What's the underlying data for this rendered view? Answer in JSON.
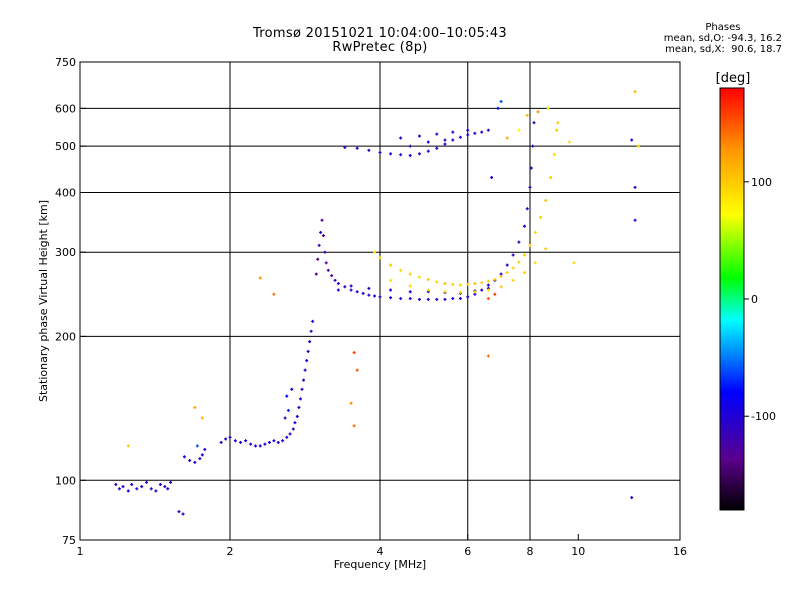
{
  "header": {
    "title": "Tromsø 20151021 10:04:00–10:05:43",
    "subtitle": "RwPretec (8p)"
  },
  "phase_info": {
    "label": "Phases",
    "o_line": "mean, sd,O: -94.3, 16.2",
    "x_line": "mean, sd,X:  90.6, 18.7"
  },
  "chart_data": {
    "type": "scatter",
    "title": "Tromsø 20151021 10:04:00–10:05:43",
    "subtitle": "RwPretec (8p)",
    "xlabel": "Frequency [MHz]",
    "ylabel": "Stationary phase Virtual Height [km]",
    "x_scale": "log",
    "y_scale": "log",
    "xlim": [
      1,
      16
    ],
    "ylim": [
      75,
      750
    ],
    "x_ticks": [
      1,
      2,
      4,
      6,
      8,
      10,
      16
    ],
    "y_ticks": [
      75,
      100,
      200,
      300,
      400,
      500,
      600,
      750
    ],
    "x_grid": [
      2,
      4,
      6,
      8
    ],
    "y_grid": [
      100,
      200,
      300,
      400,
      500,
      600
    ],
    "colorbar": {
      "label": "[deg]",
      "range": [
        -180,
        180
      ],
      "ticks": [
        100,
        0,
        -100
      ],
      "colors": [
        "#000000",
        "#5a008c",
        "#0000ff",
        "#00ffff",
        "#00ff00",
        "#ffff00",
        "#ff9900",
        "#ff0000"
      ]
    },
    "series": [
      {
        "mode": "O",
        "points": [
          [
            1.18,
            98,
            -110
          ],
          [
            1.2,
            96,
            -105
          ],
          [
            1.22,
            97,
            -112
          ],
          [
            1.25,
            95,
            -100
          ],
          [
            1.27,
            98,
            -95
          ],
          [
            1.3,
            96,
            -108
          ],
          [
            1.33,
            97,
            -102
          ],
          [
            1.36,
            99,
            -98
          ],
          [
            1.39,
            96,
            -110
          ],
          [
            1.42,
            95,
            -104
          ],
          [
            1.45,
            98,
            -100
          ],
          [
            1.48,
            97,
            -106
          ],
          [
            1.5,
            96,
            -100
          ],
          [
            1.52,
            99,
            -110
          ],
          [
            1.58,
            86,
            -105
          ],
          [
            1.61,
            85,
            -100
          ],
          [
            1.62,
            112,
            -95
          ],
          [
            1.66,
            110,
            -105
          ],
          [
            1.7,
            109,
            -100
          ],
          [
            1.74,
            111,
            -110
          ],
          [
            1.76,
            113,
            -95
          ],
          [
            1.78,
            116,
            -105
          ],
          [
            1.72,
            118,
            -60
          ],
          [
            1.92,
            120,
            -100
          ],
          [
            1.96,
            122,
            -105
          ],
          [
            2.0,
            123,
            -110
          ],
          [
            2.05,
            121,
            -100
          ],
          [
            2.1,
            120,
            -108
          ],
          [
            2.15,
            121,
            -102
          ],
          [
            2.2,
            119,
            -110
          ],
          [
            2.25,
            118,
            -100
          ],
          [
            2.3,
            118,
            -104
          ],
          [
            2.35,
            119,
            -100
          ],
          [
            2.4,
            120,
            -108
          ],
          [
            2.45,
            121,
            -100
          ],
          [
            2.5,
            120,
            -110
          ],
          [
            2.55,
            121,
            -98
          ],
          [
            2.6,
            123,
            -105
          ],
          [
            2.64,
            125,
            -100
          ],
          [
            2.68,
            128,
            -108
          ],
          [
            2.7,
            132,
            -100
          ],
          [
            2.73,
            136,
            -95
          ],
          [
            2.75,
            142,
            -105
          ],
          [
            2.77,
            148,
            -100
          ],
          [
            2.79,
            155,
            -110
          ],
          [
            2.81,
            162,
            -100
          ],
          [
            2.83,
            170,
            -105
          ],
          [
            2.85,
            178,
            -98
          ],
          [
            2.87,
            186,
            -108
          ],
          [
            2.89,
            195,
            -100
          ],
          [
            2.91,
            205,
            -110
          ],
          [
            2.93,
            215,
            -100
          ],
          [
            2.6,
            150,
            -80
          ],
          [
            2.62,
            140,
            -70
          ],
          [
            2.66,
            155,
            -90
          ],
          [
            2.58,
            135,
            -110
          ],
          [
            2.98,
            270,
            -130
          ],
          [
            3.0,
            290,
            -140
          ],
          [
            3.02,
            310,
            -120
          ],
          [
            3.04,
            330,
            -110
          ],
          [
            3.06,
            350,
            -130
          ],
          [
            3.08,
            325,
            -145
          ],
          [
            3.1,
            300,
            -120
          ],
          [
            3.12,
            285,
            -135
          ],
          [
            3.15,
            275,
            -120
          ],
          [
            3.2,
            268,
            -125
          ],
          [
            3.25,
            262,
            -110
          ],
          [
            3.3,
            258,
            -115
          ],
          [
            3.4,
            254,
            -110
          ],
          [
            3.5,
            250,
            -105
          ],
          [
            3.6,
            248,
            -100
          ],
          [
            3.7,
            246,
            -110
          ],
          [
            3.8,
            244,
            -105
          ],
          [
            3.9,
            243,
            -100
          ],
          [
            4.0,
            242,
            -110
          ],
          [
            4.2,
            241,
            -105
          ],
          [
            4.4,
            240,
            -100
          ],
          [
            4.6,
            240,
            -110
          ],
          [
            4.8,
            239,
            -105
          ],
          [
            5.0,
            239,
            -100
          ],
          [
            5.2,
            239,
            -110
          ],
          [
            5.4,
            239,
            -105
          ],
          [
            5.6,
            240,
            -100
          ],
          [
            5.8,
            240,
            -110
          ],
          [
            6.0,
            242,
            -105
          ],
          [
            6.2,
            245,
            -100
          ],
          [
            6.4,
            250,
            -110
          ],
          [
            6.6,
            256,
            -100
          ],
          [
            6.8,
            262,
            -105
          ],
          [
            7.0,
            270,
            -110
          ],
          [
            7.2,
            282,
            -100
          ],
          [
            7.4,
            296,
            -105
          ],
          [
            7.6,
            315,
            -110
          ],
          [
            7.8,
            340,
            -100
          ],
          [
            7.9,
            370,
            -105
          ],
          [
            8.0,
            410,
            -110
          ],
          [
            8.05,
            450,
            -100
          ],
          [
            8.1,
            500,
            -105
          ],
          [
            8.15,
            560,
            -110
          ],
          [
            3.3,
            250,
            -95
          ],
          [
            3.5,
            255,
            -100
          ],
          [
            3.8,
            252,
            -105
          ],
          [
            4.2,
            250,
            -100
          ],
          [
            4.6,
            248,
            -95
          ],
          [
            5.0,
            248,
            -100
          ],
          [
            5.4,
            247,
            -110
          ],
          [
            5.8,
            246,
            -100
          ],
          [
            6.2,
            249,
            -105
          ],
          [
            6.6,
            252,
            -100
          ],
          [
            3.4,
            497,
            -100
          ],
          [
            3.6,
            495,
            -105
          ],
          [
            3.8,
            490,
            -110
          ],
          [
            4.0,
            485,
            -100
          ],
          [
            4.2,
            482,
            -105
          ],
          [
            4.4,
            480,
            -110
          ],
          [
            4.6,
            478,
            -100
          ],
          [
            4.8,
            482,
            -105
          ],
          [
            5.0,
            488,
            -100
          ],
          [
            5.2,
            495,
            -110
          ],
          [
            5.4,
            505,
            -105
          ],
          [
            5.6,
            515,
            -100
          ],
          [
            5.8,
            522,
            -110
          ],
          [
            6.0,
            528,
            -105
          ],
          [
            6.2,
            532,
            -100
          ],
          [
            6.4,
            535,
            -110
          ],
          [
            6.6,
            540,
            -105
          ],
          [
            4.4,
            520,
            -100
          ],
          [
            4.8,
            525,
            -105
          ],
          [
            5.2,
            530,
            -110
          ],
          [
            5.6,
            535,
            -100
          ],
          [
            6.0,
            540,
            -105
          ],
          [
            4.6,
            500,
            -110
          ],
          [
            5.0,
            510,
            -100
          ],
          [
            5.4,
            515,
            -105
          ],
          [
            6.9,
            600,
            -80
          ],
          [
            7.0,
            620,
            -60
          ],
          [
            6.7,
            430,
            -100
          ],
          [
            12.8,
            515,
            -100
          ],
          [
            12.8,
            92,
            -100
          ],
          [
            13.0,
            410,
            -105
          ],
          [
            13.0,
            350,
            -100
          ]
        ]
      },
      {
        "mode": "X",
        "points": [
          [
            1.25,
            118,
            100
          ],
          [
            1.7,
            142,
            120
          ],
          [
            1.76,
            135,
            110
          ],
          [
            2.3,
            265,
            130
          ],
          [
            2.45,
            245,
            140
          ],
          [
            3.55,
            185,
            160
          ],
          [
            3.6,
            170,
            150
          ],
          [
            3.5,
            145,
            130
          ],
          [
            3.55,
            130,
            140
          ],
          [
            3.9,
            300,
            95
          ],
          [
            4.0,
            292,
            100
          ],
          [
            4.2,
            282,
            105
          ],
          [
            4.4,
            275,
            95
          ],
          [
            4.6,
            270,
            100
          ],
          [
            4.8,
            266,
            90
          ],
          [
            5.0,
            263,
            100
          ],
          [
            5.2,
            260,
            95
          ],
          [
            5.4,
            258,
            105
          ],
          [
            5.6,
            257,
            100
          ],
          [
            5.8,
            256,
            95
          ],
          [
            6.0,
            257,
            100
          ],
          [
            6.2,
            258,
            105
          ],
          [
            6.4,
            259,
            100
          ],
          [
            6.6,
            261,
            95
          ],
          [
            6.8,
            263,
            100
          ],
          [
            7.0,
            267,
            105
          ],
          [
            7.2,
            272,
            100
          ],
          [
            7.4,
            278,
            95
          ],
          [
            7.6,
            286,
            100
          ],
          [
            7.8,
            296,
            105
          ],
          [
            8.0,
            310,
            100
          ],
          [
            8.2,
            330,
            95
          ],
          [
            8.4,
            355,
            100
          ],
          [
            8.6,
            385,
            105
          ],
          [
            8.8,
            430,
            100
          ],
          [
            8.95,
            480,
            95
          ],
          [
            9.05,
            540,
            100
          ],
          [
            4.2,
            262,
            90
          ],
          [
            4.6,
            255,
            95
          ],
          [
            5.0,
            250,
            100
          ],
          [
            5.4,
            248,
            90
          ],
          [
            5.8,
            247,
            95
          ],
          [
            6.2,
            248,
            100
          ],
          [
            6.6,
            250,
            95
          ],
          [
            7.0,
            254,
            100
          ],
          [
            7.4,
            262,
            95
          ],
          [
            7.8,
            272,
            100
          ],
          [
            8.2,
            285,
            95
          ],
          [
            8.6,
            305,
            100
          ],
          [
            6.6,
            240,
            150
          ],
          [
            6.8,
            245,
            160
          ],
          [
            7.2,
            520,
            120
          ],
          [
            7.6,
            540,
            70
          ],
          [
            7.9,
            580,
            110
          ],
          [
            8.3,
            590,
            130
          ],
          [
            8.7,
            600,
            60
          ],
          [
            9.1,
            560,
            100
          ],
          [
            9.6,
            510,
            90
          ],
          [
            9.8,
            285,
            95
          ],
          [
            6.6,
            182,
            140
          ],
          [
            13.0,
            650,
            110
          ],
          [
            13.2,
            500,
            100
          ]
        ]
      }
    ]
  }
}
